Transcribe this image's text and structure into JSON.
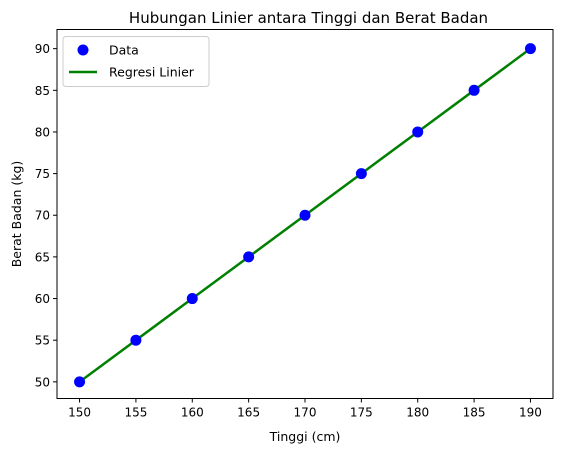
{
  "chart_data": {
    "type": "scatter",
    "title": "Hubungan Linier antara Tinggi dan Berat Badan",
    "xlabel": "Tinggi (cm)",
    "ylabel": "Berat Badan (kg)",
    "xlim": [
      148,
      192
    ],
    "ylim": [
      48,
      92.3
    ],
    "xticks": [
      "150",
      "155",
      "160",
      "165",
      "170",
      "175",
      "180",
      "185",
      "190"
    ],
    "yticks": [
      "50",
      "55",
      "60",
      "65",
      "70",
      "75",
      "80",
      "85",
      "90"
    ],
    "grid": false,
    "legend_position": "top-left",
    "series": [
      {
        "name": "Data",
        "kind": "scatter",
        "color": "#0000ff",
        "x": [
          150,
          155,
          160,
          165,
          170,
          175,
          180,
          185,
          190
        ],
        "y": [
          50,
          55,
          60,
          65,
          70,
          75,
          80,
          85,
          90
        ]
      },
      {
        "name": "Regresi Linier",
        "kind": "line",
        "color": "#008000",
        "x": [
          150,
          155,
          160,
          165,
          170,
          175,
          180,
          185,
          190
        ],
        "y": [
          50,
          55,
          60,
          65,
          70,
          75,
          80,
          85,
          90
        ]
      }
    ]
  }
}
